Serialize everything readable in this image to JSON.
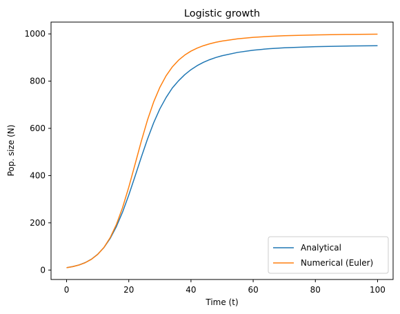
{
  "chart_data": {
    "type": "line",
    "title": "Logistic growth",
    "xlabel": "Time (t)",
    "ylabel": "Pop. size (N)",
    "xlim": [
      -5,
      105
    ],
    "ylim": [
      -40,
      1050
    ],
    "xticks": [
      0,
      20,
      40,
      60,
      80,
      100
    ],
    "yticks": [
      0,
      200,
      400,
      600,
      800,
      1000
    ],
    "grid": false,
    "legend_position": "lower-right",
    "series": [
      {
        "name": "Analytical",
        "color": "#1f77b4",
        "x": [
          0,
          2,
          4,
          6,
          8,
          10,
          12,
          14,
          16,
          18,
          20,
          22,
          24,
          26,
          28,
          30,
          32,
          34,
          36,
          38,
          40,
          42,
          44,
          46,
          48,
          50,
          55,
          60,
          65,
          70,
          80,
          90,
          100
        ],
        "y": [
          10,
          14.7,
          21.6,
          31.6,
          46.1,
          66.6,
          95.1,
          133.6,
          183.6,
          245.4,
          317.6,
          396.4,
          476.9,
          553.9,
          623.5,
          682.7,
          730.6,
          770.9,
          801.4,
          827.3,
          848.5,
          865.6,
          879.5,
          890.8,
          900.0,
          907.5,
          921.6,
          931.0,
          937.1,
          941.2,
          946.0,
          948.6,
          950.0
        ]
      },
      {
        "name": "Numerical (Euler)",
        "color": "#ff7f0e",
        "x": [
          0,
          2,
          4,
          6,
          8,
          10,
          12,
          14,
          16,
          18,
          20,
          22,
          24,
          26,
          28,
          30,
          32,
          34,
          36,
          38,
          40,
          42,
          44,
          46,
          48,
          50,
          55,
          60,
          65,
          70,
          80,
          90,
          100
        ],
        "y": [
          10,
          14.5,
          21.3,
          31.2,
          45.6,
          66.2,
          95.6,
          136.7,
          192.4,
          264.3,
          351.0,
          446.9,
          544.3,
          634.6,
          711.8,
          773.9,
          822.6,
          860.1,
          888.6,
          910.4,
          927.1,
          940.0,
          950.0,
          958.0,
          964.4,
          969.6,
          979.0,
          985.2,
          989.3,
          992.2,
          995.7,
          997.6,
          998.7
        ]
      }
    ]
  }
}
